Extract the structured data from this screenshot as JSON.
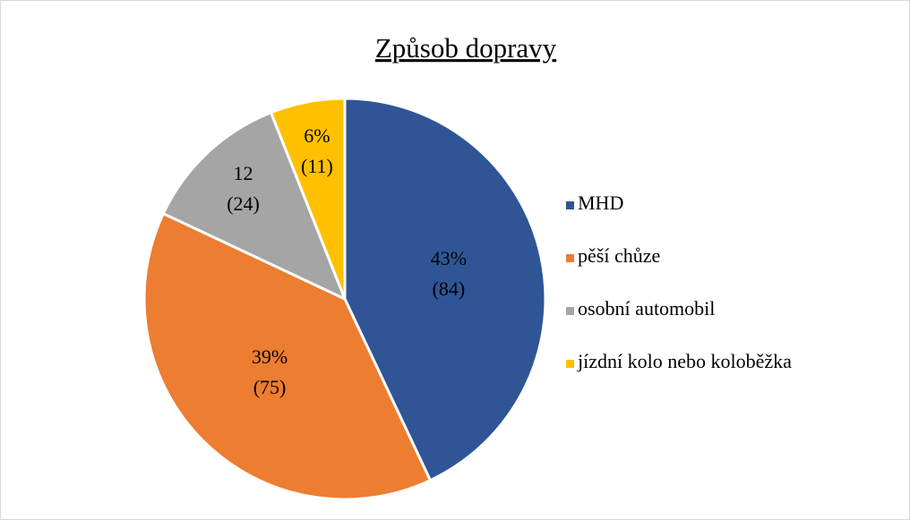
{
  "chart_data": {
    "type": "pie",
    "title": "Způsob dopravy",
    "categories": [
      "MHD",
      "pěší chůze",
      "osobní automobil",
      "jízdní kolo nebo koloběžka"
    ],
    "values": [
      43,
      39,
      12,
      6
    ],
    "value_labels": [
      "43%",
      "39%",
      "12",
      "6%"
    ],
    "counts": [
      84,
      75,
      24,
      11
    ],
    "count_labels": [
      "(84)",
      "(75)",
      "(24)",
      "(11)"
    ],
    "colors": [
      "#2f5597",
      "#ed7d31",
      "#a5a5a5",
      "#ffc000"
    ],
    "legend": "right"
  }
}
